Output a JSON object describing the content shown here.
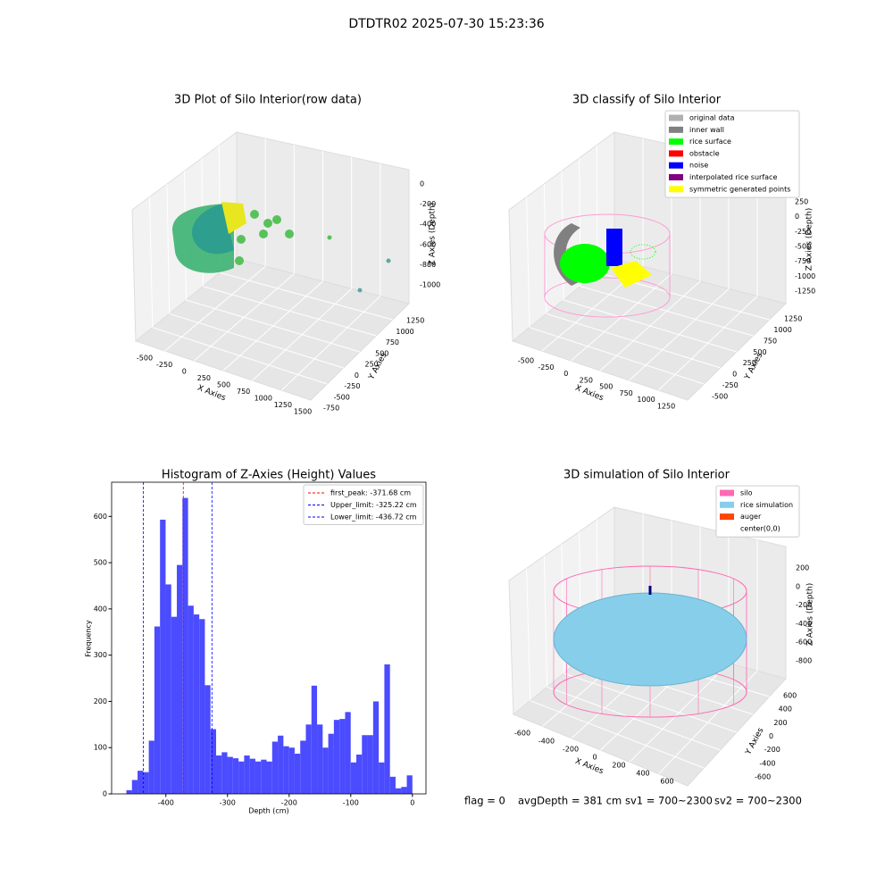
{
  "title": "DTDTR02 2025-07-30 15:23:36",
  "chart_data": {
    "type": "histogram",
    "title": "Histogram of Z-Axies (Height) Values",
    "xlabel": "Depth (cm)",
    "ylabel": "Frequency",
    "bins": [
      -464.1,
      -455.0,
      -445.9,
      -436.8,
      -427.7,
      -418.6,
      -409.5,
      -400.4,
      -391.3,
      -382.2,
      -373.1,
      -364.0,
      -354.9,
      -345.8,
      -336.7,
      -327.6,
      -318.5,
      -309.4,
      -300.3,
      -291.2,
      -282.1,
      -273.0,
      -263.9,
      -254.8,
      -245.7,
      -236.6,
      -227.5,
      -218.4,
      -209.3,
      -200.2,
      -191.1,
      -182.0,
      -172.9,
      -163.8,
      -154.7,
      -145.6,
      -136.5,
      -127.4,
      -118.3,
      -109.2,
      -100.1,
      -91.0,
      -81.9,
      -72.8,
      -63.7,
      -54.6,
      -45.5,
      -36.4,
      -27.3,
      -18.2,
      -9.1,
      0
    ],
    "counts": [
      8,
      30,
      50,
      47,
      115,
      362,
      593,
      453,
      383,
      495,
      640,
      407,
      388,
      378,
      235,
      140,
      83,
      90,
      80,
      77,
      70,
      83,
      76,
      70,
      74,
      70,
      113,
      126,
      103,
      100,
      87,
      115,
      150,
      234,
      150,
      100,
      130,
      160,
      162,
      177,
      68,
      85,
      127,
      127,
      200,
      68,
      280,
      37,
      12,
      15,
      40
    ],
    "color": "#4b4bff",
    "xlim": [
      -488,
      22
    ],
    "ylim": [
      0,
      674
    ],
    "xticks": [
      -400,
      -300,
      -200,
      -100,
      0
    ],
    "yticks": [
      0,
      100,
      200,
      300,
      400,
      500,
      600
    ],
    "vlines": [
      {
        "name": "first_peak: -371.68 cm",
        "value": -371.68,
        "color": "#ff0000"
      },
      {
        "name": "Upper_limit: -325.22 cm",
        "value": -325.22,
        "color": "#0000ff"
      },
      {
        "name": "Lower_limit: -436.72 cm",
        "value": -436.72,
        "color": "#0000ff"
      }
    ],
    "legend": "upper right"
  },
  "panels": [
    {
      "title": "3D Plot of Silo Interior(row data)",
      "xlabel": "X Axies",
      "ylabel": "Y Axies",
      "zlabel": "Z Axies (Depth)",
      "xticks": [
        -500,
        -250,
        0,
        250,
        500,
        750,
        1000,
        1250,
        1500
      ],
      "yticks": [
        -750,
        -500,
        -250,
        0,
        250,
        500,
        750,
        1000,
        1250
      ],
      "zticks": [
        0,
        -200,
        -400,
        -600,
        -800,
        -1000
      ]
    },
    {
      "title": "3D classify of Silo Interior",
      "xlabel": "X Axies",
      "ylabel": "Y Axies",
      "zlabel": "Z Axies (Depth)",
      "xticks": [
        -500,
        -250,
        0,
        250,
        500,
        750,
        1000,
        1250
      ],
      "yticks": [
        -500,
        -250,
        0,
        250,
        500,
        750,
        1000,
        1250
      ],
      "zticks": [
        250,
        0,
        -250,
        -500,
        -750,
        -1000,
        -1250
      ],
      "legend": [
        {
          "name": "original data",
          "color": "#b0b0b0"
        },
        {
          "name": "inner wall",
          "color": "#808080"
        },
        {
          "name": "rice surface",
          "color": "#00ff00"
        },
        {
          "name": "obstacle",
          "color": "#ff0000"
        },
        {
          "name": "noise",
          "color": "#0000ff"
        },
        {
          "name": "interpolated rice surface",
          "color": "#800080"
        },
        {
          "name": "symmetric generated points",
          "color": "#ffff00"
        }
      ]
    },
    {
      "title": "3D simulation of Silo Interior",
      "xlabel": "X Axies",
      "ylabel": "Y Axies",
      "zlabel": "Z Axies (Depth)",
      "xticks": [
        -600,
        -400,
        -200,
        0,
        200,
        400,
        600
      ],
      "yticks": [
        -600,
        -400,
        -200,
        0,
        200,
        400,
        600
      ],
      "zticks": [
        200,
        0,
        -200,
        -400,
        -600,
        -800
      ],
      "legend": [
        {
          "name": "silo",
          "color": "#ff69b4"
        },
        {
          "name": "rice simulation",
          "color": "#87ceeb"
        },
        {
          "name": "auger",
          "color": "#ff4500"
        },
        {
          "name": "center(0,0)"
        }
      ]
    }
  ],
  "footer": [
    "flag = 0",
    "avgDepth = 381 cm",
    "sv1 = 700~2300",
    "sv2 = 700~2300"
  ]
}
